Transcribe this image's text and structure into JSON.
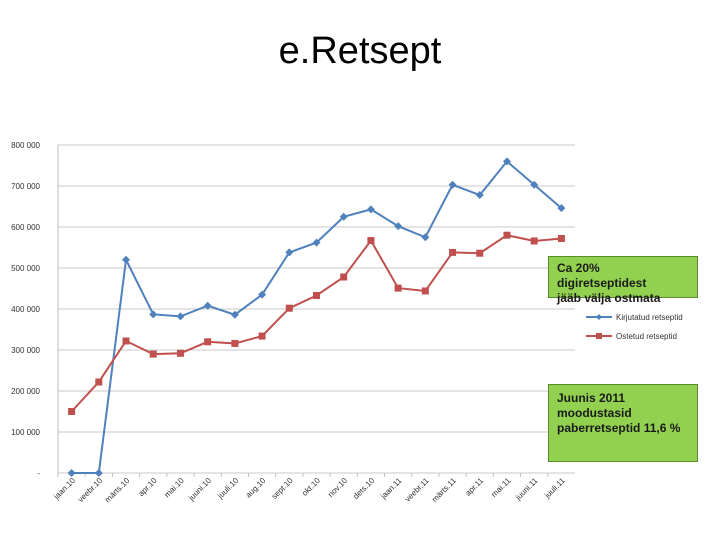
{
  "page": {
    "title": "e.Retsept"
  },
  "colors": {
    "series1": "#4f81bd",
    "series2": "#c0504d",
    "annotation_bg": "#92d050",
    "grid": "#c8c8c8"
  },
  "annotations": [
    {
      "text_line1": "Ca 20% digiretseptidest",
      "text_line2": "jääb välja ostmata"
    },
    {
      "text_line1": "Juunis 2011",
      "text_line2": "moodustasid",
      "text_line3": "paberretseptid 11,6 %"
    }
  ],
  "chart_data": {
    "type": "line",
    "title": "",
    "xlabel": "",
    "ylabel": "",
    "ylim": [
      0,
      800000
    ],
    "y_ticks": [
      0,
      100000,
      200000,
      300000,
      400000,
      500000,
      600000,
      700000,
      800000
    ],
    "y_tick_labels": [
      "-",
      "100 000",
      "200 000",
      "300 000",
      "400 000",
      "500 000",
      "600 000",
      "700 000",
      "800 000"
    ],
    "grid": true,
    "legend_position": "right",
    "categories": [
      "jaan.10",
      "veebr.10",
      "märts.10",
      "apr.10",
      "mai.10",
      "juuni.10",
      "juuli.10",
      "aug.10",
      "sept.10",
      "okt.10",
      "nov.10",
      "dets.10",
      "jaan.11",
      "veebr.11",
      "märts.11",
      "apr.11",
      "mai.11",
      "juuni.11",
      "juuli.11"
    ],
    "series": [
      {
        "name": "Kirjutatud retseptid",
        "color": "#4f81bd",
        "marker": "diamond",
        "values": [
          0,
          0,
          520000,
          387000,
          382000,
          408000,
          386000,
          435000,
          538000,
          562000,
          625000,
          643000,
          602000,
          575000,
          703000,
          678000,
          760000,
          703000,
          646000
        ]
      },
      {
        "name": "Ostetud retseptid",
        "color": "#c0504d",
        "marker": "square",
        "values": [
          150000,
          222000,
          322000,
          290000,
          292000,
          320000,
          316000,
          334000,
          402000,
          433000,
          478000,
          567000,
          451000,
          444000,
          538000,
          536000,
          580000,
          566000,
          572000
        ]
      }
    ]
  }
}
